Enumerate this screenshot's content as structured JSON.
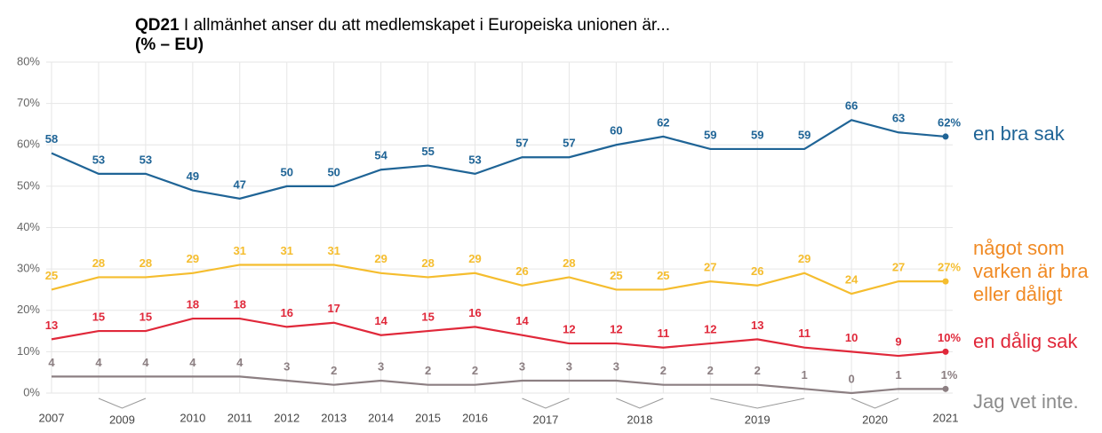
{
  "chart_data": {
    "type": "line",
    "title_bold": "QD21",
    "title": "I allmänhet anser du att medlemskapet i Europeiska unionen är...",
    "subtitle": "(% – EU)",
    "categories": [
      "2007",
      "2009",
      "2009",
      "2010",
      "2011",
      "2012",
      "2013",
      "2014",
      "2015",
      "2016",
      "2017",
      "2017",
      "2018",
      "2018",
      "2019",
      "2019",
      "2019",
      "2020",
      "2020",
      "2021"
    ],
    "series": [
      {
        "name": "en bra sak",
        "color": "#1f6496",
        "label_color": "#1f6496",
        "values": [
          58,
          53,
          53,
          49,
          47,
          50,
          50,
          54,
          55,
          53,
          57,
          57,
          60,
          62,
          59,
          59,
          59,
          66,
          63,
          62
        ],
        "value_labels": [
          "58",
          "53",
          "53",
          "49",
          "47",
          "50",
          "50",
          "54",
          "55",
          "53",
          "57",
          "57",
          "60",
          "62",
          "59",
          "59",
          "59",
          "66",
          "63",
          "62%"
        ]
      },
      {
        "name": "något som varken är bra eller dåligt",
        "color": "#f5bd2e",
        "label_color": "#f08a24",
        "values": [
          25,
          28,
          28,
          29,
          31,
          31,
          31,
          29,
          28,
          29,
          26,
          28,
          25,
          25,
          27,
          26,
          29,
          24,
          27,
          27
        ],
        "value_labels": [
          "25",
          "28",
          "28",
          "29",
          "31",
          "31",
          "31",
          "29",
          "28",
          "29",
          "26",
          "28",
          "25",
          "25",
          "27",
          "26",
          "29",
          "24",
          "27",
          "27%"
        ]
      },
      {
        "name": "en dålig sak",
        "color": "#e0283a",
        "label_color": "#e0283a",
        "values": [
          13,
          15,
          15,
          18,
          18,
          16,
          17,
          14,
          15,
          16,
          14,
          12,
          12,
          11,
          12,
          13,
          11,
          10,
          9,
          10
        ],
        "value_labels": [
          "13",
          "15",
          "15",
          "18",
          "18",
          "16",
          "17",
          "14",
          "15",
          "16",
          "14",
          "12",
          "12",
          "11",
          "12",
          "13",
          "11",
          "10",
          "9",
          "10%"
        ]
      },
      {
        "name": "Jag vet inte.",
        "color": "#8c7f82",
        "label_color": "#8c8c8c",
        "values": [
          4,
          4,
          4,
          4,
          4,
          3,
          2,
          3,
          2,
          2,
          3,
          3,
          3,
          2,
          2,
          2,
          1,
          0,
          1,
          1
        ],
        "value_labels": [
          "4",
          "4",
          "4",
          "4",
          "4",
          "3",
          "2",
          "3",
          "2",
          "2",
          "3",
          "3",
          "3",
          "2",
          "2",
          "2",
          "1",
          "0",
          "1",
          "1%"
        ]
      }
    ],
    "ylim": [
      0,
      80
    ],
    "yticks": [
      {
        "value": 0,
        "label": "0%"
      },
      {
        "value": 10,
        "label": "10%"
      },
      {
        "value": 20,
        "label": "20%"
      },
      {
        "value": 30,
        "label": "30%"
      },
      {
        "value": 40,
        "label": "40%"
      },
      {
        "value": 50,
        "label": "50%"
      },
      {
        "value": 60,
        "label": "60%"
      },
      {
        "value": 70,
        "label": "70%"
      },
      {
        "value": 80,
        "label": "80%"
      }
    ],
    "grid": true
  }
}
